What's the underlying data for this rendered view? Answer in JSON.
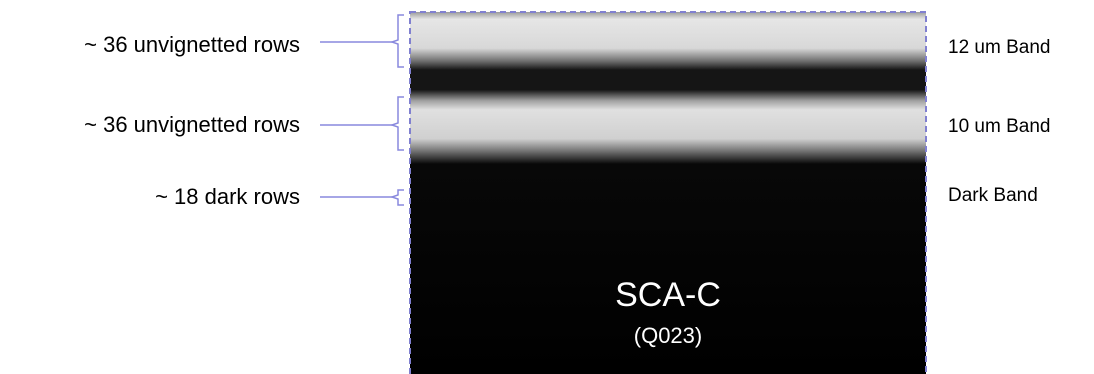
{
  "left_annotations": [
    "~ 36 unvignetted rows",
    "~ 36 unvignetted rows",
    "~ 18 dark rows"
  ],
  "band_labels": [
    "12 um Band",
    "10 um Band",
    "Dark Band"
  ],
  "detector": {
    "name": "SCA-C",
    "id": "(Q023)"
  }
}
